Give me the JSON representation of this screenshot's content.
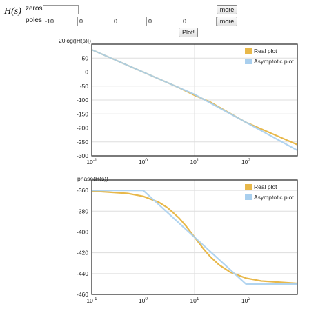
{
  "form": {
    "title": "H(s)",
    "zeros_label": "zeros",
    "poles_label": "poles",
    "zeros": [
      ""
    ],
    "poles": [
      "-10",
      "0",
      "0",
      "0",
      "0"
    ],
    "more_zeros_label": "more",
    "more_poles_label": "more",
    "plot_label": "Plot!"
  },
  "colors": {
    "real": "#e8b84a",
    "asymptotic": "#a9cfee",
    "grid": "#dddddd",
    "frame": "#222222"
  },
  "chart_data": [
    {
      "type": "line",
      "title": "",
      "ylabel": "20log(|H(s)|)",
      "xscale": "log",
      "xlim": [
        0.1,
        1000
      ],
      "ylim": [
        -300,
        100
      ],
      "xticks": [
        0.1,
        1,
        10,
        100
      ],
      "xtick_labels": [
        {
          "base": "10",
          "exp": "-1"
        },
        {
          "base": "10",
          "exp": "0"
        },
        {
          "base": "10",
          "exp": "1"
        },
        {
          "base": "10",
          "exp": "2"
        }
      ],
      "yticks": [
        -300,
        -250,
        -200,
        -150,
        -100,
        -50,
        0,
        50
      ],
      "legend": {
        "position": "top-right",
        "entries": [
          "Real plot",
          "Asymptotic plot"
        ]
      },
      "grid": true,
      "series": [
        {
          "name": "Real plot",
          "x": [
            0.1,
            1,
            5,
            10,
            20,
            100,
            1000
          ],
          "y": [
            80,
            0,
            -56,
            -83,
            -107,
            -180,
            -260
          ]
        },
        {
          "name": "Asymptotic plot",
          "x": [
            0.1,
            1,
            10,
            100,
            1000
          ],
          "y": [
            80,
            0,
            -80,
            -180,
            -280
          ]
        }
      ]
    },
    {
      "type": "line",
      "title": "",
      "ylabel": "phase(H(s))",
      "xscale": "log",
      "xlim": [
        0.1,
        1000
      ],
      "ylim": [
        -460,
        -350
      ],
      "xticks": [
        0.1,
        1,
        10,
        100
      ],
      "xtick_labels": [
        {
          "base": "10",
          "exp": "-1"
        },
        {
          "base": "10",
          "exp": "0"
        },
        {
          "base": "10",
          "exp": "1"
        },
        {
          "base": "10",
          "exp": "2"
        }
      ],
      "yticks": [
        -460,
        -440,
        -420,
        -400,
        -380,
        -360
      ],
      "legend": {
        "position": "top-right",
        "entries": [
          "Real plot",
          "Asymptotic plot"
        ]
      },
      "grid": true,
      "series": [
        {
          "name": "Real plot",
          "x": [
            0.1,
            0.5,
            1,
            2,
            3,
            5,
            7,
            10,
            15,
            20,
            30,
            50,
            100,
            200,
            1000
          ],
          "y": [
            -360.6,
            -362.9,
            -365.7,
            -371.3,
            -376.7,
            -386.6,
            -395.0,
            -405.0,
            -416.3,
            -423.4,
            -431.6,
            -438.7,
            -444.3,
            -447.1,
            -449.4
          ]
        },
        {
          "name": "Asymptotic plot",
          "x": [
            0.1,
            1,
            100,
            1000
          ],
          "y": [
            -360,
            -360,
            -450,
            -450
          ]
        }
      ]
    }
  ]
}
